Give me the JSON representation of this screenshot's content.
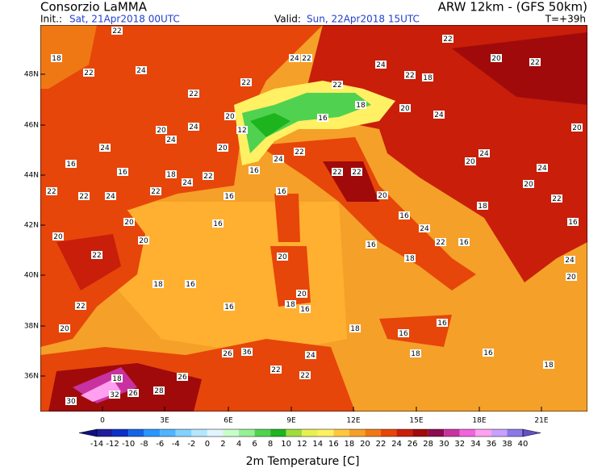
{
  "header": {
    "title": "Consorzio LaMMA",
    "init_label": "Init.:",
    "init": "Sat, 21Apr2018 00UTC",
    "valid_label": "Valid:",
    "valid": "Sun, 22Apr2018 15UTC",
    "model": "ARW 12km - (GFS 50km)",
    "lead": "T=+39h"
  },
  "map": {
    "lat_labels": [
      "48N",
      "46N",
      "44N",
      "42N",
      "40N",
      "38N",
      "36N"
    ],
    "lon_labels": [
      "0",
      "3E",
      "6E",
      "9E",
      "12E",
      "15E",
      "18E",
      "21E"
    ],
    "stations": [
      22,
      18,
      22,
      24,
      22,
      24,
      20,
      24,
      24,
      16,
      16,
      18,
      24,
      22,
      22,
      22,
      24,
      20,
      22,
      20,
      22,
      20,
      16,
      16,
      16,
      22,
      24,
      22,
      24,
      22,
      18,
      22,
      20,
      22,
      20,
      24,
      20,
      24,
      20,
      22,
      16,
      24,
      20,
      18,
      16,
      22,
      24,
      16,
      20,
      22,
      22,
      22,
      24,
      20,
      20,
      18,
      16,
      16,
      18,
      16,
      22,
      20,
      18,
      32,
      30,
      26,
      28,
      26,
      26,
      36,
      22,
      22,
      24,
      18,
      16,
      18,
      16,
      16,
      18,
      16,
      18,
      18,
      22,
      20,
      24,
      20,
      20,
      16,
      12,
      16
    ]
  },
  "colorbar": {
    "labels": [
      -14,
      -12,
      -10,
      -8,
      -6,
      -4,
      -2,
      0,
      2,
      4,
      6,
      8,
      10,
      12,
      14,
      16,
      18,
      20,
      22,
      24,
      26,
      28,
      30,
      32,
      34,
      36,
      38,
      40
    ],
    "colors": [
      "#101080",
      "#1e1e9a",
      "#0a32c8",
      "#1464e6",
      "#2896ff",
      "#50b4ff",
      "#82d2ff",
      "#b4e6ff",
      "#e0f5ff",
      "#c8ffc8",
      "#96f096",
      "#50d250",
      "#1eb41e",
      "#a0dc3c",
      "#e6f050",
      "#fff064",
      "#ffc83c",
      "#f5a028",
      "#f07814",
      "#e6460a",
      "#c81e0a",
      "#a00a0a",
      "#8c0a50",
      "#c832a0",
      "#f064dc",
      "#ffa0f0",
      "#c8a0ff",
      "#8c78e6",
      "#6450c8"
    ],
    "title": "2m Temperature [C]"
  }
}
